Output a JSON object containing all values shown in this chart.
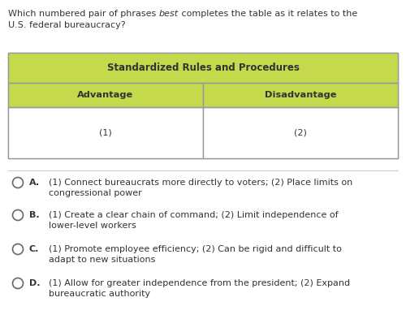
{
  "question_parts": [
    {
      "text": "Which numbered pair of phrases ",
      "style": "normal"
    },
    {
      "text": "best",
      "style": "italic"
    },
    {
      "text": " completes the table as it relates to the",
      "style": "normal"
    }
  ],
  "question_line2": "U.S. federal bureaucracy?",
  "table_title": "Standardized Rules and Procedures",
  "col1_header": "Advantage",
  "col2_header": "Disadvantage",
  "cell1": "(1)",
  "cell2": "(2)",
  "header_bg": "#c5d94c",
  "table_border_color": "#999999",
  "options": [
    {
      "letter": "A",
      "line1": "(1) Connect bureaucrats more directly to voters; (2) Place limits on",
      "line2": "congressional power"
    },
    {
      "letter": "B",
      "line1": "(1) Create a clear chain of command; (2) Limit independence of",
      "line2": "lower-level workers"
    },
    {
      "letter": "C",
      "line1": "(1) Promote employee efficiency; (2) Can be rigid and difficult to",
      "line2": "adapt to new situations"
    },
    {
      "letter": "D",
      "line1": "(1) Allow for greater independence from the president; (2) Expand",
      "line2": "bureaucratic authority"
    }
  ],
  "bg_color": "#ffffff",
  "text_color": "#333333",
  "circle_color": "#666666",
  "sep_color": "#cccccc",
  "fontsize": 8.0,
  "title_fontsize": 8.5,
  "header_fontsize": 8.2
}
